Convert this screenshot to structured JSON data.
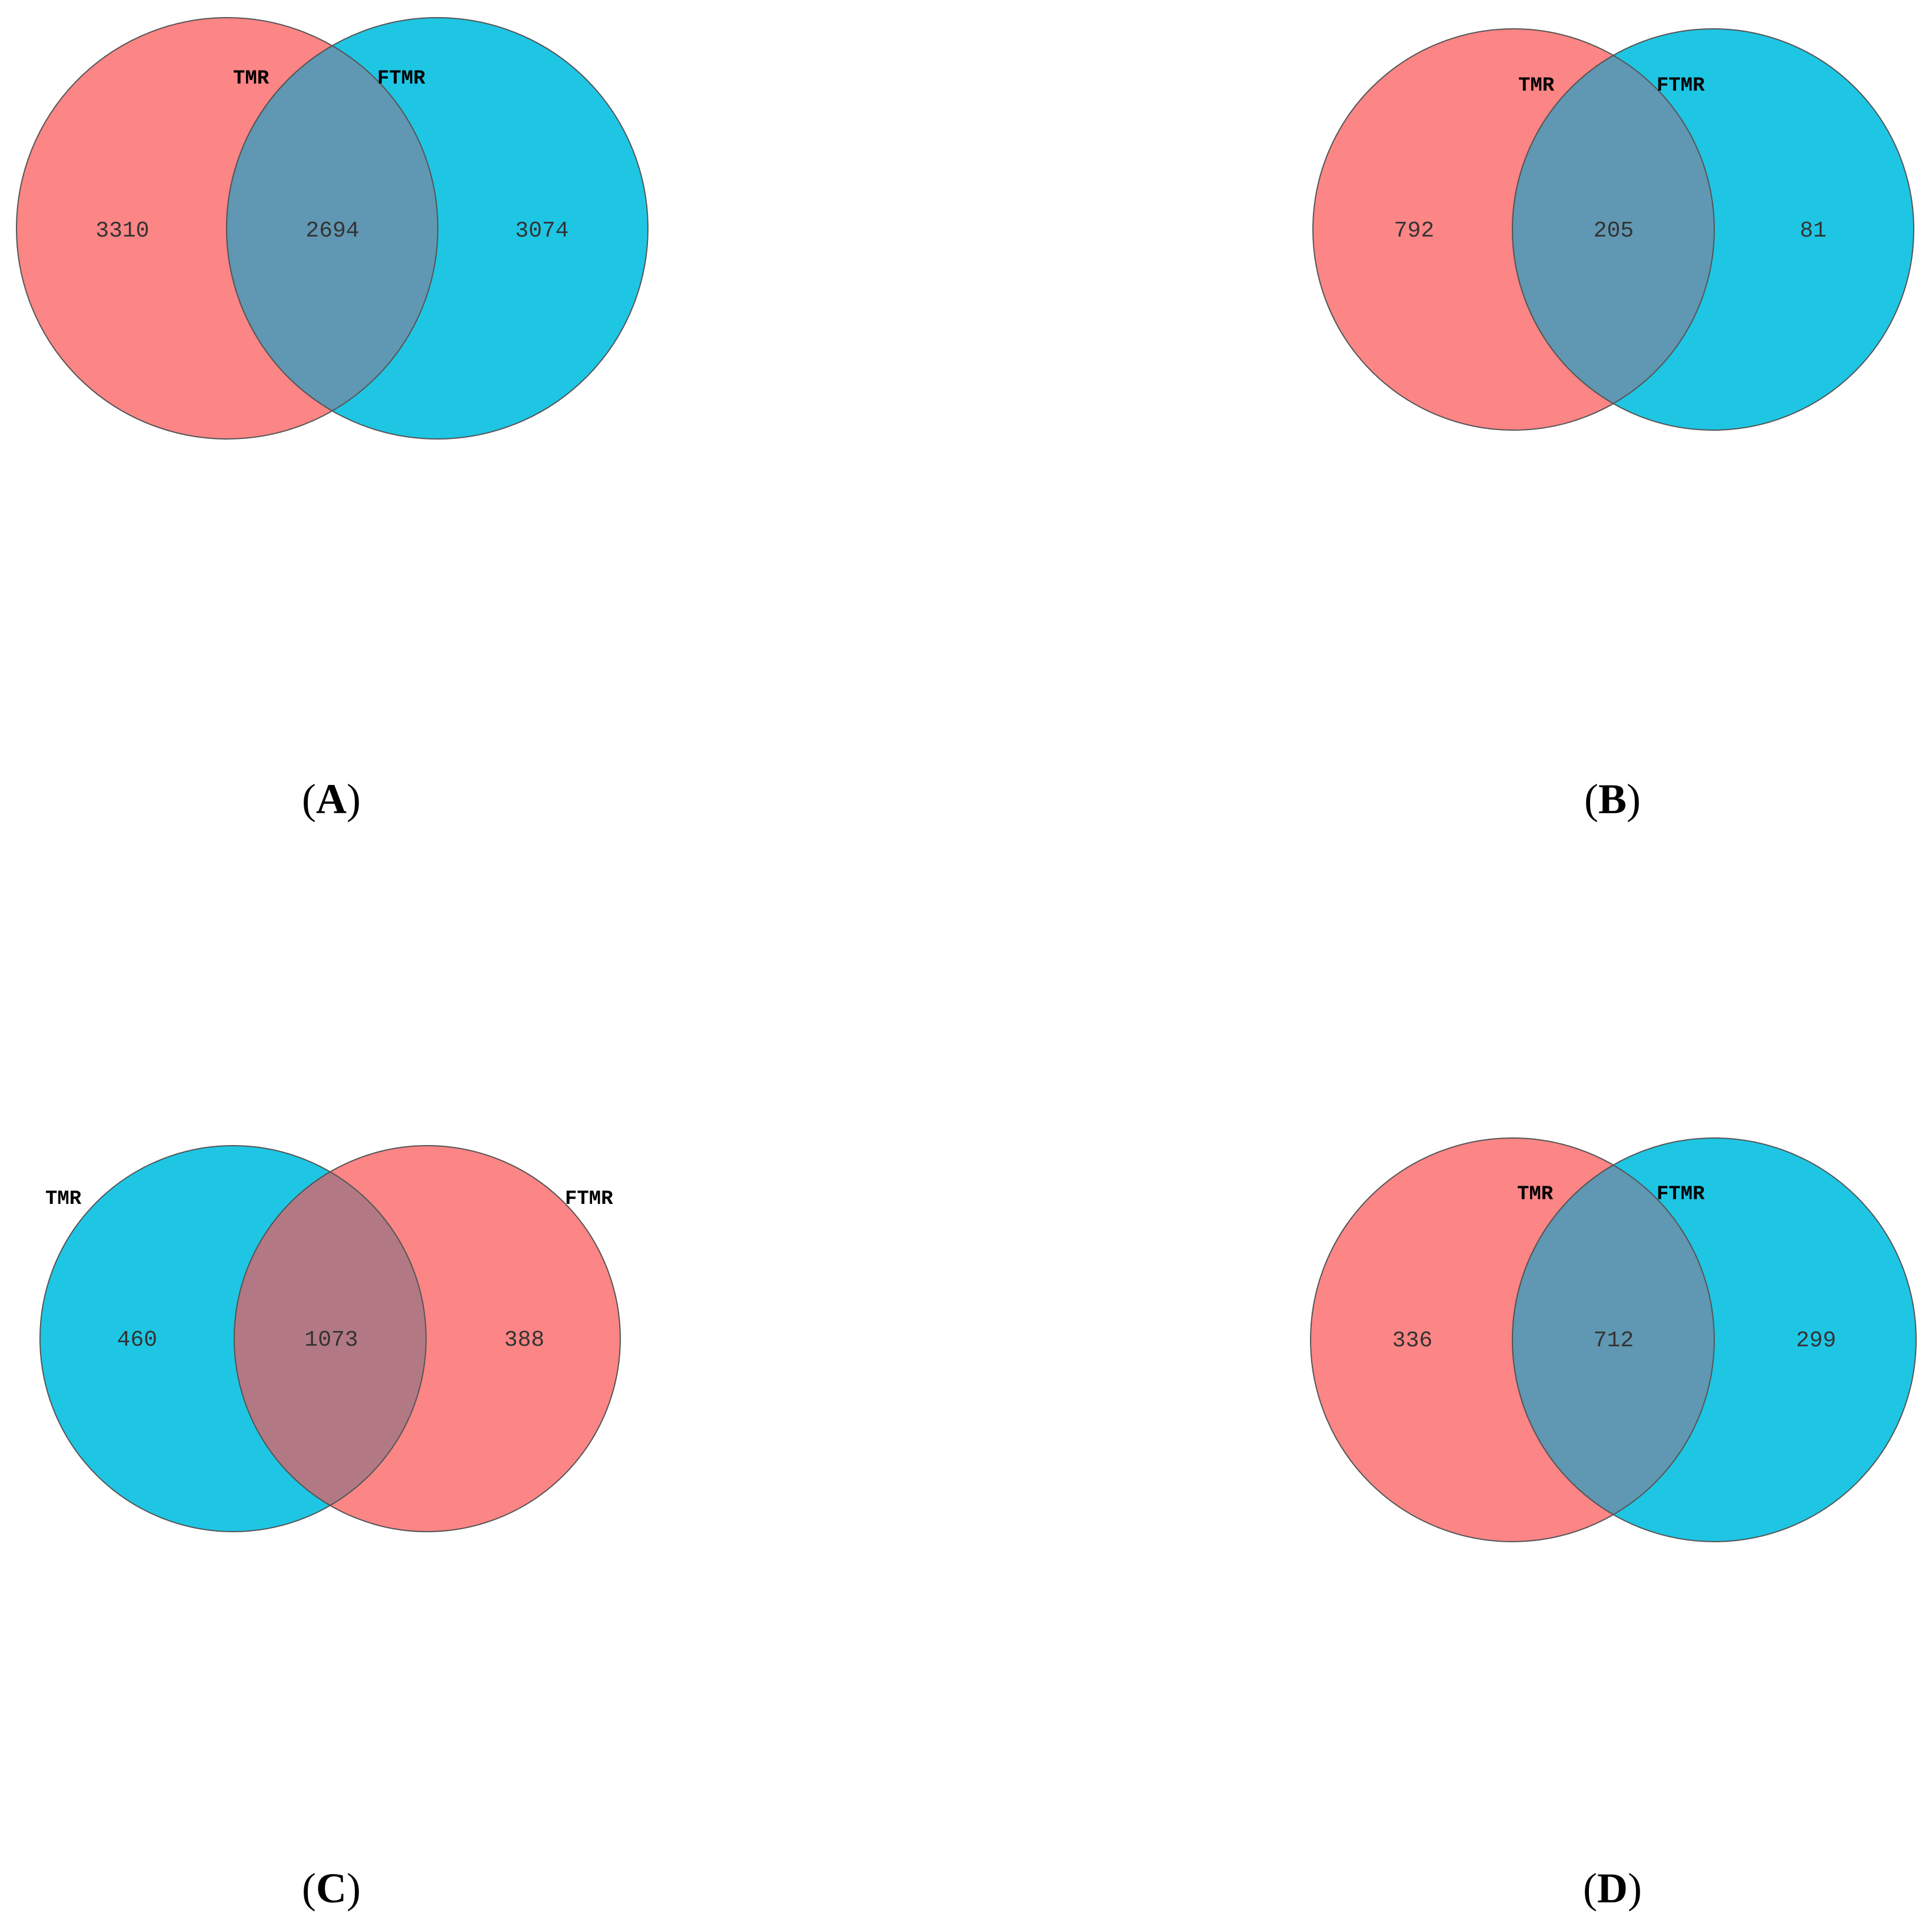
{
  "colors": {
    "red_set": "#fc8585",
    "blue_set": "#1ec6e4",
    "outline": "#555555",
    "overlap_red_blue": "#6097b2",
    "overlap_blue_red": "#b27985"
  },
  "panels": [
    {
      "letter": "A",
      "left_set": {
        "label": "TMR",
        "count": "3310",
        "color": "red_set"
      },
      "right_set": {
        "label": "FTMR",
        "count": "3074",
        "color": "blue_set"
      },
      "overlap_count": "2694"
    },
    {
      "letter": "B",
      "left_set": {
        "label": "TMR",
        "count": "792",
        "color": "red_set"
      },
      "right_set": {
        "label": "FTMR",
        "count": "81",
        "color": "blue_set"
      },
      "overlap_count": "205"
    },
    {
      "letter": "C",
      "left_set": {
        "label": "TMR",
        "count": "460",
        "color": "blue_set"
      },
      "right_set": {
        "label": "FTMR",
        "count": "388",
        "color": "red_set"
      },
      "overlap_count": "1073"
    },
    {
      "letter": "D",
      "left_set": {
        "label": "TMR",
        "count": "336",
        "color": "red_set"
      },
      "right_set": {
        "label": "FTMR",
        "count": "299",
        "color": "blue_set"
      },
      "overlap_count": "712"
    }
  ]
}
